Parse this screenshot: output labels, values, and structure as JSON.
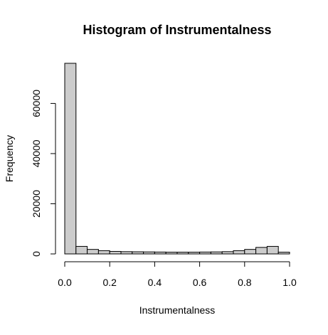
{
  "chart_data": {
    "type": "bar",
    "title": "Histogram of Instrumentalness",
    "xlabel": "Instrumentalness",
    "ylabel": "Frequency",
    "bar_color": "#cccccc",
    "outline_color": "#000000",
    "bins": [
      [
        0.0,
        0.05
      ],
      [
        0.05,
        0.1
      ],
      [
        0.1,
        0.15
      ],
      [
        0.15,
        0.2
      ],
      [
        0.2,
        0.25
      ],
      [
        0.25,
        0.3
      ],
      [
        0.3,
        0.35
      ],
      [
        0.35,
        0.4
      ],
      [
        0.4,
        0.45
      ],
      [
        0.45,
        0.5
      ],
      [
        0.5,
        0.55
      ],
      [
        0.55,
        0.6
      ],
      [
        0.6,
        0.65
      ],
      [
        0.65,
        0.7
      ],
      [
        0.7,
        0.75
      ],
      [
        0.75,
        0.8
      ],
      [
        0.8,
        0.85
      ],
      [
        0.85,
        0.9
      ],
      [
        0.9,
        0.95
      ],
      [
        0.95,
        1.0
      ]
    ],
    "values": [
      76000,
      3000,
      1800,
      1300,
      1000,
      900,
      850,
      800,
      750,
      700,
      700,
      700,
      750,
      800,
      900,
      1300,
      1800,
      2600,
      3000,
      700
    ],
    "xlim": [
      0,
      1
    ],
    "ylim": [
      0,
      76000
    ],
    "x_ticks": [
      {
        "value": 0.0,
        "label": "0.0"
      },
      {
        "value": 0.2,
        "label": "0.2"
      },
      {
        "value": 0.4,
        "label": "0.4"
      },
      {
        "value": 0.6,
        "label": "0.6"
      },
      {
        "value": 0.8,
        "label": "0.8"
      },
      {
        "value": 1.0,
        "label": "1.0"
      }
    ],
    "y_ticks": [
      {
        "value": 0,
        "label": "0"
      },
      {
        "value": 20000,
        "label": "20000"
      },
      {
        "value": 40000,
        "label": "40000"
      },
      {
        "value": 60000,
        "label": "60000"
      }
    ],
    "grid": false,
    "legend": "none"
  }
}
